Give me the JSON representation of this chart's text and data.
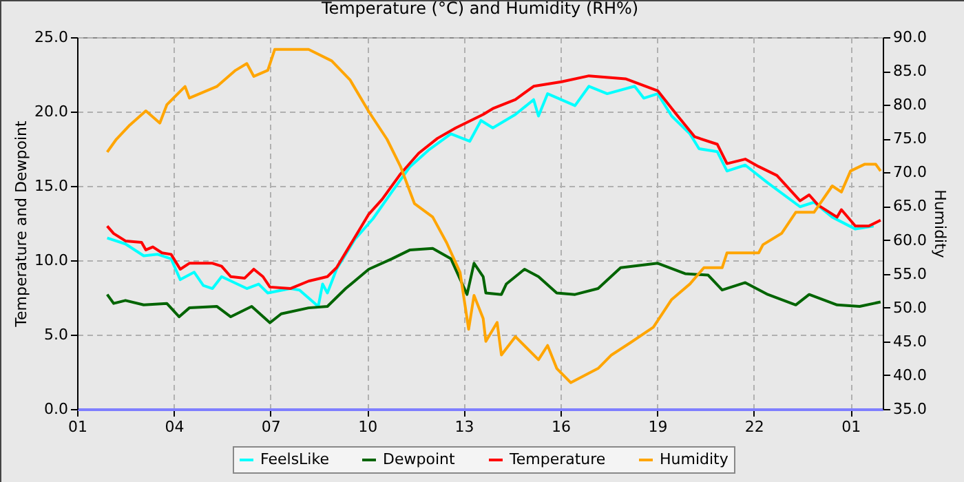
{
  "chart_data": {
    "type": "line",
    "title": "Temperature (°C) and Humidity (RH%)",
    "ylabel": "Temperature and Dewpoint",
    "y2label": "Humidity",
    "xlim": [
      "--01-01T01:00",
      "--01-02T02:00"
    ],
    "xticks": [
      {
        "value": "--01-01T01:00",
        "label": "01"
      },
      {
        "value": "--01-01T04:00",
        "label": "04"
      },
      {
        "value": "--01-01T07:00",
        "label": "07"
      },
      {
        "value": "--01-01T10:00",
        "label": "10"
      },
      {
        "value": "--01-01T13:00",
        "label": "13"
      },
      {
        "value": "--01-01T16:00",
        "label": "16"
      },
      {
        "value": "--01-01T19:00",
        "label": "19"
      },
      {
        "value": "--01-01T22:00",
        "label": "22"
      },
      {
        "value": "--01-02T01:00",
        "label": "01"
      }
    ],
    "ylim": [
      0,
      25
    ],
    "yticks": [
      {
        "value": 0,
        "label": "0.0"
      },
      {
        "value": 5,
        "label": "5.0"
      },
      {
        "value": 10,
        "label": "10.0"
      },
      {
        "value": 15,
        "label": "15.0"
      },
      {
        "value": 20,
        "label": "20.0"
      },
      {
        "value": 25,
        "label": "25.0"
      }
    ],
    "y2lim": [
      35,
      90
    ],
    "y2ticks": [
      {
        "value": 35,
        "label": "35.0"
      },
      {
        "value": 40,
        "label": "40.0"
      },
      {
        "value": 45,
        "label": "45.0"
      },
      {
        "value": 50,
        "label": "50.0"
      },
      {
        "value": 55,
        "label": "55.0"
      },
      {
        "value": 60,
        "label": "60.0"
      },
      {
        "value": 65,
        "label": "65.0"
      },
      {
        "value": 70,
        "label": "70.0"
      },
      {
        "value": 75,
        "label": "75.0"
      },
      {
        "value": 80,
        "label": "80.0"
      },
      {
        "value": 85,
        "label": "85.0"
      },
      {
        "value": 90,
        "label": "90.0"
      }
    ],
    "grid": true,
    "legend": "bottom",
    "line_style": "solid",
    "series": [
      {
        "name": "FeelsLike",
        "color": "#00ffff",
        "x": [
          "--01-01T01:56",
          "--01-01T02:30",
          "--01-01T03:04",
          "--01-01T03:30",
          "--01-01T03:55",
          "--01-01T04:12",
          "--01-01T04:38",
          "--01-01T04:55",
          "--01-01T05:12",
          "--01-01T05:29",
          "--01-01T06:16",
          "--01-01T06:38",
          "--01-01T06:55",
          "--01-01T07:37",
          "--01-01T07:54",
          "--01-01T08:29",
          "--01-01T08:37",
          "--01-01T08:46",
          "--01-01T09:03",
          "--01-01T09:37",
          "--01-01T10:11",
          "--01-01T10:46",
          "--01-01T11:20",
          "--01-01T11:54",
          "--01-01T12:36",
          "--01-01T13:11",
          "--01-01T13:32",
          "--01-01T13:54",
          "--01-01T14:36",
          "--01-01T15:10",
          "--01-01T15:19",
          "--01-01T15:36",
          "--01-01T16:27",
          "--01-01T16:53",
          "--01-01T17:27",
          "--01-01T18:18",
          "--01-01T18:35",
          "--01-01T19:01",
          "--01-01T19:27",
          "--01-01T20:01",
          "--01-01T20:18",
          "--01-01T20:52",
          "--01-01T21:10",
          "--01-01T21:44",
          "--01-01T22:26",
          "--01-01T23:26",
          "--01-01T23:52",
          "--01-02T00:26",
          "--01-02T01:09",
          "--01-02T01:43"
        ],
        "values": [
          11.5,
          11.1,
          10.3,
          10.4,
          10.1,
          8.7,
          9.2,
          8.3,
          8.1,
          8.9,
          8.1,
          8.4,
          7.8,
          8.1,
          8.0,
          6.9,
          8.4,
          7.8,
          9.4,
          11.4,
          12.8,
          14.6,
          16.3,
          17.4,
          18.5,
          18.0,
          19.4,
          18.9,
          19.8,
          20.8,
          19.7,
          21.2,
          20.4,
          21.7,
          21.2,
          21.7,
          20.9,
          21.2,
          19.7,
          18.5,
          17.5,
          17.3,
          16.0,
          16.4,
          15.2,
          13.6,
          13.9,
          12.9,
          12.1,
          12.3
        ]
      },
      {
        "name": "Dewpoint",
        "color": "#006400",
        "x": [
          "--01-01T01:56",
          "--01-01T02:08",
          "--01-01T02:30",
          "--01-01T03:04",
          "--01-01T03:47",
          "--01-01T04:10",
          "--01-01T04:29",
          "--01-01T05:20",
          "--01-01T05:46",
          "--01-01T06:25",
          "--01-01T06:59",
          "--01-01T07:20",
          "--01-01T08:11",
          "--01-01T08:46",
          "--01-01T09:20",
          "--01-01T10:03",
          "--01-01T10:46",
          "--01-01T11:20",
          "--01-01T12:02",
          "--01-01T12:36",
          "--01-01T13:06",
          "--01-01T13:19",
          "--01-01T13:36",
          "--01-01T13:41",
          "--01-01T14:10",
          "--01-01T14:19",
          "--01-01T14:53",
          "--01-01T15:19",
          "--01-01T15:53",
          "--01-01T16:27",
          "--01-01T17:10",
          "--01-01T17:52",
          "--01-01T19:01",
          "--01-01T19:52",
          "--01-01T20:35",
          "--01-01T21:01",
          "--01-01T21:44",
          "--01-01T22:26",
          "--01-01T23:18",
          "--01-01T23:43",
          "--01-02T00:35",
          "--01-02T01:17",
          "--01-02T01:56"
        ],
        "values": [
          7.7,
          7.1,
          7.3,
          7.0,
          7.1,
          6.2,
          6.8,
          6.9,
          6.2,
          6.9,
          5.8,
          6.4,
          6.8,
          6.9,
          8.1,
          9.4,
          10.1,
          10.7,
          10.8,
          10.1,
          7.7,
          9.8,
          8.9,
          7.8,
          7.7,
          8.4,
          9.4,
          8.9,
          7.8,
          7.7,
          8.1,
          9.5,
          9.8,
          9.1,
          9.0,
          8.0,
          8.5,
          7.7,
          7.0,
          7.7,
          7.0,
          6.9,
          7.2
        ]
      },
      {
        "name": "Temperature",
        "color": "#ff0000",
        "x": [
          "--01-01T01:56",
          "--01-01T02:08",
          "--01-01T02:30",
          "--01-01T03:00",
          "--01-01T03:08",
          "--01-01T03:21",
          "--01-01T03:38",
          "--01-01T03:55",
          "--01-01T04:12",
          "--01-01T04:29",
          "--01-01T05:12",
          "--01-01T05:29",
          "--01-01T05:46",
          "--01-01T06:12",
          "--01-01T06:29",
          "--01-01T06:46",
          "--01-01T06:59",
          "--01-01T07:37",
          "--01-01T08:11",
          "--01-01T08:46",
          "--01-01T09:03",
          "--01-01T09:28",
          "--01-01T10:03",
          "--01-01T10:28",
          "--01-01T11:02",
          "--01-01T11:36",
          "--01-01T12:11",
          "--01-01T12:45",
          "--01-01T13:36",
          "--01-01T13:54",
          "--01-01T14:36",
          "--01-01T15:10",
          "--01-01T16:02",
          "--01-01T16:53",
          "--01-01T18:01",
          "--01-01T19:01",
          "--01-01T19:36",
          "--01-01T20:10",
          "--01-01T20:52",
          "--01-01T21:10",
          "--01-01T21:44",
          "--01-01T22:09",
          "--01-01T22:43",
          "--01-01T23:26",
          "--01-01T23:43",
          "--01-02T00:00",
          "--01-02T00:35",
          "--01-02T00:43",
          "--01-02T01:09",
          "--01-02T01:34",
          "--01-02T01:56"
        ],
        "values": [
          12.3,
          11.8,
          11.3,
          11.2,
          10.7,
          10.9,
          10.5,
          10.4,
          9.4,
          9.8,
          9.8,
          9.6,
          8.9,
          8.8,
          9.4,
          8.9,
          8.2,
          8.1,
          8.6,
          8.9,
          9.5,
          11.0,
          13.1,
          14.1,
          15.8,
          17.2,
          18.2,
          18.9,
          19.8,
          20.2,
          20.8,
          21.7,
          22.0,
          22.4,
          22.2,
          21.4,
          19.8,
          18.3,
          17.8,
          16.5,
          16.8,
          16.3,
          15.7,
          14.0,
          14.4,
          13.7,
          12.9,
          13.4,
          12.3,
          12.3,
          12.7
        ]
      },
      {
        "name": "Humidity",
        "color": "#ffa500",
        "axis": "y2",
        "x": [
          "--01-01T01:56",
          "--01-01T02:13",
          "--01-01T02:38",
          "--01-01T03:08",
          "--01-01T03:34",
          "--01-01T03:47",
          "--01-01T04:21",
          "--01-01T04:29",
          "--01-01T05:20",
          "--01-01T05:55",
          "--01-01T06:16",
          "--01-01T06:29",
          "--01-01T06:55",
          "--01-01T07:08",
          "--01-01T08:11",
          "--01-01T08:54",
          "--01-01T09:28",
          "--01-01T10:03",
          "--01-01T10:37",
          "--01-01T11:02",
          "--01-01T11:28",
          "--01-01T12:02",
          "--01-01T12:28",
          "--01-01T12:53",
          "--01-01T13:09",
          "--01-01T13:19",
          "--01-01T13:36",
          "--01-01T13:41",
          "--01-01T14:02",
          "--01-01T14:10",
          "--01-01T14:36",
          "--01-01T15:19",
          "--01-01T15:36",
          "--01-01T15:53",
          "--01-01T16:19",
          "--01-01T17:10",
          "--01-01T17:35",
          "--01-01T18:10",
          "--01-01T18:53",
          "--01-01T19:27",
          "--01-01T20:01",
          "--01-01T20:27",
          "--01-01T21:01",
          "--01-01T21:10",
          "--01-01T22:09",
          "--01-01T22:17",
          "--01-01T22:52",
          "--01-01T23:18",
          "--01-01T23:52",
          "--01-02T00:26",
          "--01-02T00:43",
          "--01-02T01:00",
          "--01-02T01:26",
          "--01-02T01:47",
          "--01-02T01:56"
        ],
        "values": [
          73.0,
          74.9,
          77.0,
          79.1,
          77.3,
          80.0,
          82.7,
          81.0,
          82.7,
          85.1,
          86.1,
          84.2,
          85.1,
          88.2,
          88.2,
          86.5,
          83.7,
          79.0,
          74.9,
          70.9,
          65.4,
          63.4,
          59.6,
          55.2,
          46.8,
          51.8,
          48.4,
          45.0,
          47.8,
          43.0,
          45.7,
          42.3,
          44.4,
          41.0,
          38.9,
          41.0,
          43.0,
          44.8,
          47.1,
          51.2,
          53.5,
          55.9,
          55.9,
          58.1,
          58.1,
          59.3,
          61.0,
          64.1,
          64.1,
          68.0,
          67.1,
          70.2,
          71.2,
          71.2,
          70.2
        ]
      }
    ]
  }
}
